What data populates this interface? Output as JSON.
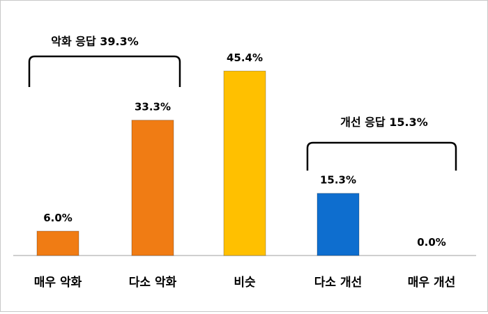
{
  "chart_data": {
    "type": "bar",
    "categories": [
      "매우 악화",
      "다소 악화",
      "비슷",
      "다소 개선",
      "매우 개선"
    ],
    "values": [
      6.0,
      33.3,
      45.4,
      15.3,
      0.0
    ],
    "value_labels": [
      "6.0%",
      "33.3%",
      "45.4%",
      "15.3%",
      "0.0%"
    ],
    "bar_colors": [
      "#F07C14",
      "#F07C14",
      "#FFC000",
      "#0E6ECF",
      "#0E6ECF"
    ],
    "ylim": [
      0,
      50
    ],
    "title": "",
    "xlabel": "",
    "ylabel": "",
    "grid": false,
    "annotations": [
      {
        "text": "악화 응답 39.3%",
        "covers": [
          "매우 악화",
          "다소 악화"
        ]
      },
      {
        "text": "개선 응답 15.3%",
        "covers": [
          "다소 개선",
          "매우 개선"
        ]
      }
    ]
  }
}
